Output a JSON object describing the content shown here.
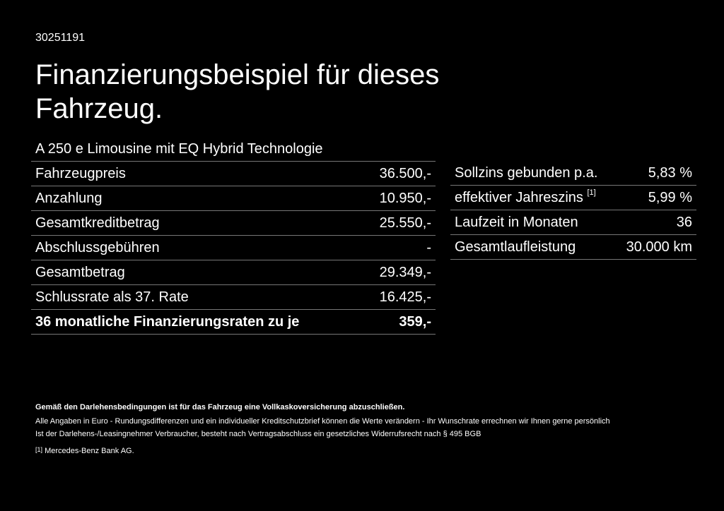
{
  "header": {
    "id": "30251191",
    "title": "Finanzierungsbeispiel für dieses Fahrzeug.",
    "subtitle": "A 250 e Limousine mit EQ Hybrid Technologie"
  },
  "left_table": {
    "rows": [
      [
        "Fahrzeugpreis",
        "36.500,-"
      ],
      [
        "Anzahlung",
        "10.950,-"
      ],
      [
        "Gesamtkreditbetrag",
        "25.550,-"
      ],
      [
        "Abschlussgebühren",
        "-"
      ],
      [
        "Gesamtbetrag",
        "29.349,-"
      ],
      [
        "Schlussrate als 37. Rate",
        "16.425,-"
      ],
      [
        "36 monatliche Finanzierungsraten zu je",
        "359,-"
      ]
    ]
  },
  "right_table": {
    "rows": [
      {
        "label": "Sollzins gebunden p.a.",
        "value": "5,83 %"
      },
      {
        "label": "effektiver Jahreszins",
        "sup": "[1]",
        "value": "5,99 %"
      },
      {
        "label": "Laufzeit in Monaten",
        "value": "36"
      },
      {
        "label": "Gesamtlaufleistung",
        "value": "30.000 km"
      }
    ]
  },
  "notes": {
    "bold": "Gemäß den Darlehensbedingungen ist für das Fahrzeug eine Vollkaskoversicherung abzuschließen.",
    "lines": [
      "Alle Angaben in Euro - Rundungsdifferenzen und ein individueller Kreditschutzbrief können die Werte verändern - Ihr Wunschrate errechnen wir Ihnen gerne persönlich",
      "Ist der Darlehens-/Leasingnehmer Verbraucher, besteht nach Vertragsabschluss ein gesetzliches Widerrufsrecht nach § 495 BGB"
    ]
  },
  "footnote": {
    "marker": "[1]",
    "text": "Mercedes-Benz Bank AG."
  }
}
